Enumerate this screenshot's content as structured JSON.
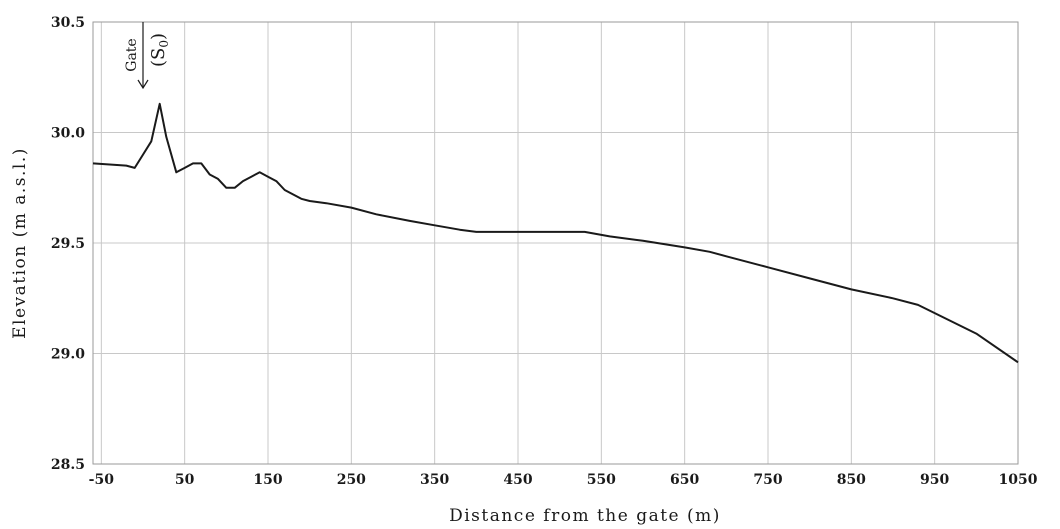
{
  "chart_data": {
    "type": "line",
    "title": "",
    "xlabel": "Distance from the gate (m)",
    "ylabel": "Elevation (m a.s.l.)",
    "xlim": [
      -60,
      1050
    ],
    "ylim": [
      28.5,
      30.5
    ],
    "x_ticks": [
      -50,
      50,
      150,
      250,
      350,
      450,
      550,
      650,
      750,
      850,
      950,
      1050
    ],
    "y_ticks": [
      28.5,
      29.0,
      29.5,
      30.0,
      30.5
    ],
    "y_tick_labels": [
      "28.5",
      "29.0",
      "29.5",
      "30.0",
      "30.5"
    ],
    "grid": true,
    "series": [
      {
        "name": "",
        "x": [
          -60,
          -20,
          -10,
          0,
          10,
          20,
          28,
          40,
          50,
          60,
          70,
          80,
          90,
          100,
          110,
          120,
          130,
          140,
          150,
          160,
          170,
          180,
          190,
          200,
          220,
          250,
          280,
          320,
          350,
          380,
          400,
          450,
          500,
          530,
          560,
          600,
          650,
          680,
          700,
          750,
          800,
          850,
          900,
          930,
          1000,
          1050
        ],
        "values": [
          29.86,
          29.85,
          29.84,
          29.9,
          29.96,
          30.13,
          29.98,
          29.82,
          29.84,
          29.86,
          29.86,
          29.81,
          29.79,
          29.75,
          29.75,
          29.78,
          29.8,
          29.82,
          29.8,
          29.78,
          29.74,
          29.72,
          29.7,
          29.69,
          29.68,
          29.66,
          29.63,
          29.6,
          29.58,
          29.56,
          29.55,
          29.55,
          29.55,
          29.55,
          29.53,
          29.51,
          29.48,
          29.46,
          29.44,
          29.39,
          29.34,
          29.29,
          29.25,
          29.22,
          29.09,
          28.96
        ]
      }
    ],
    "annotations": [
      {
        "text": "Gate",
        "x": 0
      },
      {
        "text": "(S",
        "subscript": "0",
        "suffix": ")",
        "x": 25
      }
    ]
  }
}
